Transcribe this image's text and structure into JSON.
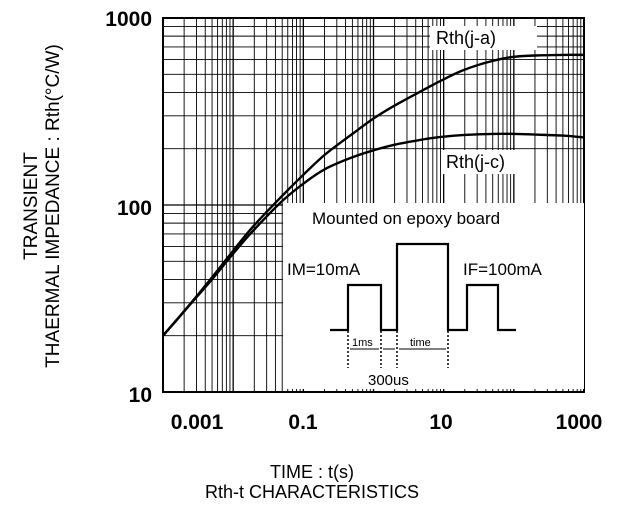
{
  "chart_data": {
    "type": "line",
    "xscale": "log",
    "yscale": "log",
    "xlim": [
      0.001,
      1000
    ],
    "ylim": [
      10,
      1000
    ],
    "grid": true,
    "x_tick_labels": [
      "0.001",
      "0.1",
      "10",
      "1000"
    ],
    "y_tick_labels": [
      "10",
      "100",
      "1000"
    ],
    "ylabel_line1": "TRANSIENT",
    "ylabel_line2": "THAERMAL IMPEDANCE : Rth(°C/W)",
    "xlabel": "TIME : t(s)",
    "title": "Rth-t CHARACTERISTICS",
    "series": [
      {
        "name": "Rth(j-a)",
        "x": [
          0.001,
          0.002,
          0.005,
          0.01,
          0.02,
          0.05,
          0.1,
          0.2,
          0.5,
          1,
          2,
          5,
          10,
          20,
          50,
          100,
          200,
          500,
          1000
        ],
        "y": [
          20,
          27,
          41,
          57,
          78,
          112,
          145,
          185,
          240,
          290,
          340,
          410,
          470,
          530,
          590,
          620,
          630,
          635,
          635
        ]
      },
      {
        "name": "Rth(j-c)",
        "x": [
          0.001,
          0.002,
          0.005,
          0.01,
          0.02,
          0.05,
          0.1,
          0.2,
          0.5,
          1,
          2,
          5,
          10,
          20,
          50,
          100,
          200,
          500,
          1000
        ],
        "y": [
          20,
          27,
          40,
          55,
          74,
          105,
          130,
          155,
          180,
          196,
          210,
          224,
          232,
          237,
          240,
          240,
          238,
          235,
          230
        ]
      }
    ]
  },
  "inset": {
    "title": "Mounted on epoxy board",
    "im_label": "IM=10mA",
    "if_label": "IF=100mA",
    "dim_1ms": "1ms",
    "dim_time": "time",
    "dim_300us": "300us"
  }
}
